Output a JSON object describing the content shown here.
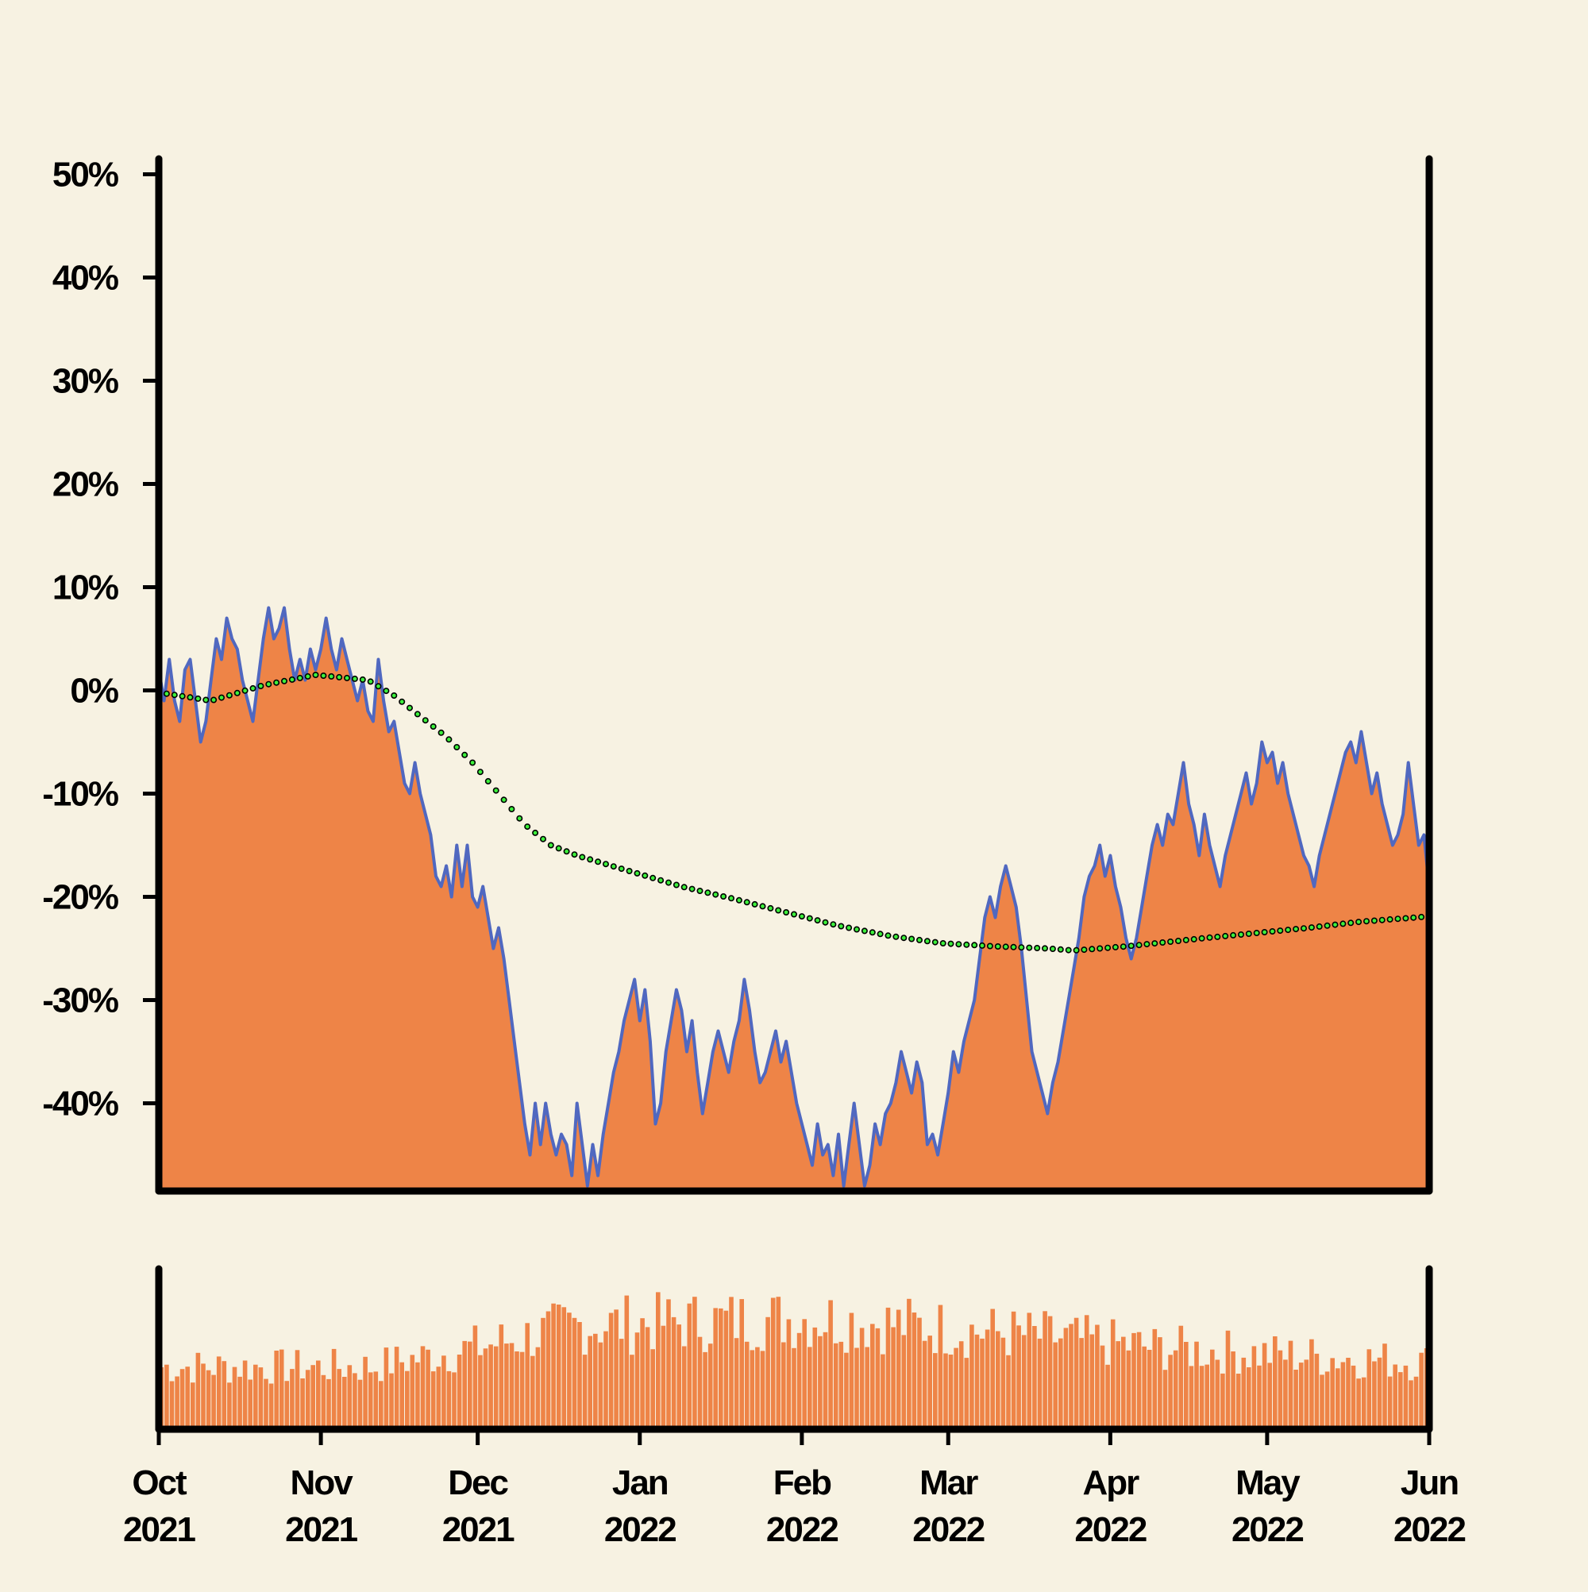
{
  "chart_data": {
    "type": "area",
    "title": "",
    "xlabel": "",
    "ylabel": "",
    "ylim": [
      -48,
      51
    ],
    "yticks": [
      {
        "value": 50,
        "label": "50%"
      },
      {
        "value": 40,
        "label": "40%"
      },
      {
        "value": 30,
        "label": "30%"
      },
      {
        "value": 20,
        "label": "20%"
      },
      {
        "value": 10,
        "label": "10%"
      },
      {
        "value": 0,
        "label": "0%"
      },
      {
        "value": -10,
        "label": "-10%"
      },
      {
        "value": -20,
        "label": "-20%"
      },
      {
        "value": -30,
        "label": "-30%"
      },
      {
        "value": -40,
        "label": "-40%"
      }
    ],
    "xrange_days": [
      0,
      243
    ],
    "xticks": [
      {
        "day": 0,
        "month": "Oct",
        "year": "2021"
      },
      {
        "day": 31,
        "month": "Nov",
        "year": "2021"
      },
      {
        "day": 61,
        "month": "Dec",
        "year": "2021"
      },
      {
        "day": 92,
        "month": "Jan",
        "year": "2022"
      },
      {
        "day": 123,
        "month": "Feb",
        "year": "2022"
      },
      {
        "day": 151,
        "month": "Mar",
        "year": "2022"
      },
      {
        "day": 182,
        "month": "Apr",
        "year": "2022"
      },
      {
        "day": 212,
        "month": "May",
        "year": "2022"
      },
      {
        "day": 243,
        "month": "Jun",
        "year": "2022"
      }
    ],
    "price_anchors": [
      [
        0,
        2
      ],
      [
        1,
        -1
      ],
      [
        2,
        3
      ],
      [
        3,
        -1
      ],
      [
        4,
        -3
      ],
      [
        5,
        2
      ],
      [
        6,
        3
      ],
      [
        7,
        -1
      ],
      [
        8,
        -5
      ],
      [
        9,
        -3
      ],
      [
        10,
        1
      ],
      [
        11,
        5
      ],
      [
        12,
        3
      ],
      [
        13,
        7
      ],
      [
        14,
        5
      ],
      [
        15,
        4
      ],
      [
        16,
        1
      ],
      [
        17,
        -1
      ],
      [
        18,
        -3
      ],
      [
        19,
        1
      ],
      [
        20,
        5
      ],
      [
        21,
        8
      ],
      [
        22,
        5
      ],
      [
        23,
        6
      ],
      [
        24,
        8
      ],
      [
        25,
        4
      ],
      [
        26,
        1
      ],
      [
        27,
        3
      ],
      [
        28,
        1
      ],
      [
        29,
        4
      ],
      [
        30,
        2
      ],
      [
        31,
        4
      ],
      [
        32,
        7
      ],
      [
        33,
        4
      ],
      [
        34,
        2
      ],
      [
        35,
        5
      ],
      [
        36,
        3
      ],
      [
        37,
        1
      ],
      [
        38,
        -1
      ],
      [
        39,
        1
      ],
      [
        40,
        -2
      ],
      [
        41,
        -3
      ],
      [
        42,
        3
      ],
      [
        43,
        -1
      ],
      [
        44,
        -4
      ],
      [
        45,
        -3
      ],
      [
        46,
        -6
      ],
      [
        47,
        -9
      ],
      [
        48,
        -10
      ],
      [
        49,
        -7
      ],
      [
        50,
        -10
      ],
      [
        51,
        -12
      ],
      [
        52,
        -14
      ],
      [
        53,
        -18
      ],
      [
        54,
        -19
      ],
      [
        55,
        -17
      ],
      [
        56,
        -20
      ],
      [
        57,
        -15
      ],
      [
        58,
        -19
      ],
      [
        59,
        -15
      ],
      [
        60,
        -20
      ],
      [
        61,
        -21
      ],
      [
        62,
        -19
      ],
      [
        63,
        -22
      ],
      [
        64,
        -25
      ],
      [
        65,
        -23
      ],
      [
        66,
        -26
      ],
      [
        67,
        -30
      ],
      [
        68,
        -34
      ],
      [
        69,
        -38
      ],
      [
        70,
        -42
      ],
      [
        71,
        -45
      ],
      [
        72,
        -40
      ],
      [
        73,
        -44
      ],
      [
        74,
        -40
      ],
      [
        75,
        -43
      ],
      [
        76,
        -45
      ],
      [
        77,
        -43
      ],
      [
        78,
        -44
      ],
      [
        79,
        -47
      ],
      [
        80,
        -40
      ],
      [
        81,
        -44
      ],
      [
        82,
        -48
      ],
      [
        83,
        -44
      ],
      [
        84,
        -47
      ],
      [
        85,
        -43
      ],
      [
        86,
        -40
      ],
      [
        87,
        -37
      ],
      [
        88,
        -35
      ],
      [
        89,
        -32
      ],
      [
        90,
        -30
      ],
      [
        91,
        -28
      ],
      [
        92,
        -32
      ],
      [
        93,
        -29
      ],
      [
        94,
        -34
      ],
      [
        95,
        -42
      ],
      [
        96,
        -40
      ],
      [
        97,
        -35
      ],
      [
        98,
        -32
      ],
      [
        99,
        -29
      ],
      [
        100,
        -31
      ],
      [
        101,
        -35
      ],
      [
        102,
        -32
      ],
      [
        103,
        -37
      ],
      [
        104,
        -41
      ],
      [
        105,
        -38
      ],
      [
        106,
        -35
      ],
      [
        107,
        -33
      ],
      [
        108,
        -35
      ],
      [
        109,
        -37
      ],
      [
        110,
        -34
      ],
      [
        111,
        -32
      ],
      [
        112,
        -28
      ],
      [
        113,
        -31
      ],
      [
        114,
        -35
      ],
      [
        115,
        -38
      ],
      [
        116,
        -37
      ],
      [
        117,
        -35
      ],
      [
        118,
        -33
      ],
      [
        119,
        -36
      ],
      [
        120,
        -34
      ],
      [
        121,
        -37
      ],
      [
        122,
        -40
      ],
      [
        123,
        -42
      ],
      [
        124,
        -44
      ],
      [
        125,
        -46
      ],
      [
        126,
        -42
      ],
      [
        127,
        -45
      ],
      [
        128,
        -44
      ],
      [
        129,
        -47
      ],
      [
        130,
        -43
      ],
      [
        131,
        -48
      ],
      [
        132,
        -44
      ],
      [
        133,
        -40
      ],
      [
        134,
        -44
      ],
      [
        135,
        -48
      ],
      [
        136,
        -46
      ],
      [
        137,
        -42
      ],
      [
        138,
        -44
      ],
      [
        139,
        -41
      ],
      [
        140,
        -40
      ],
      [
        141,
        -38
      ],
      [
        142,
        -35
      ],
      [
        143,
        -37
      ],
      [
        144,
        -39
      ],
      [
        145,
        -36
      ],
      [
        146,
        -38
      ],
      [
        147,
        -44
      ],
      [
        148,
        -43
      ],
      [
        149,
        -45
      ],
      [
        150,
        -42
      ],
      [
        151,
        -39
      ],
      [
        152,
        -35
      ],
      [
        153,
        -37
      ],
      [
        154,
        -34
      ],
      [
        155,
        -32
      ],
      [
        156,
        -30
      ],
      [
        157,
        -26
      ],
      [
        158,
        -22
      ],
      [
        159,
        -20
      ],
      [
        160,
        -22
      ],
      [
        161,
        -19
      ],
      [
        162,
        -17
      ],
      [
        163,
        -19
      ],
      [
        164,
        -21
      ],
      [
        165,
        -25
      ],
      [
        166,
        -30
      ],
      [
        167,
        -35
      ],
      [
        168,
        -37
      ],
      [
        169,
        -39
      ],
      [
        170,
        -41
      ],
      [
        171,
        -38
      ],
      [
        172,
        -36
      ],
      [
        173,
        -33
      ],
      [
        174,
        -30
      ],
      [
        175,
        -27
      ],
      [
        176,
        -24
      ],
      [
        177,
        -20
      ],
      [
        178,
        -18
      ],
      [
        179,
        -17
      ],
      [
        180,
        -15
      ],
      [
        181,
        -18
      ],
      [
        182,
        -16
      ],
      [
        183,
        -19
      ],
      [
        184,
        -21
      ],
      [
        185,
        -24
      ],
      [
        186,
        -26
      ],
      [
        187,
        -24
      ],
      [
        188,
        -21
      ],
      [
        189,
        -18
      ],
      [
        190,
        -15
      ],
      [
        191,
        -13
      ],
      [
        192,
        -15
      ],
      [
        193,
        -12
      ],
      [
        194,
        -13
      ],
      [
        195,
        -10
      ],
      [
        196,
        -7
      ],
      [
        197,
        -11
      ],
      [
        198,
        -13
      ],
      [
        199,
        -16
      ],
      [
        200,
        -12
      ],
      [
        201,
        -15
      ],
      [
        202,
        -17
      ],
      [
        203,
        -19
      ],
      [
        204,
        -16
      ],
      [
        205,
        -14
      ],
      [
        206,
        -12
      ],
      [
        207,
        -10
      ],
      [
        208,
        -8
      ],
      [
        209,
        -11
      ],
      [
        210,
        -9
      ],
      [
        211,
        -5
      ],
      [
        212,
        -7
      ],
      [
        213,
        -6
      ],
      [
        214,
        -9
      ],
      [
        215,
        -7
      ],
      [
        216,
        -10
      ],
      [
        217,
        -12
      ],
      [
        218,
        -14
      ],
      [
        219,
        -16
      ],
      [
        220,
        -17
      ],
      [
        221,
        -19
      ],
      [
        222,
        -16
      ],
      [
        223,
        -14
      ],
      [
        224,
        -12
      ],
      [
        225,
        -10
      ],
      [
        226,
        -8
      ],
      [
        227,
        -6
      ],
      [
        228,
        -5
      ],
      [
        229,
        -7
      ],
      [
        230,
        -4
      ],
      [
        231,
        -7
      ],
      [
        232,
        -10
      ],
      [
        233,
        -8
      ],
      [
        234,
        -11
      ],
      [
        235,
        -13
      ],
      [
        236,
        -15
      ],
      [
        237,
        -14
      ],
      [
        238,
        -12
      ],
      [
        239,
        -7
      ],
      [
        240,
        -11
      ],
      [
        241,
        -15
      ],
      [
        242,
        -14
      ],
      [
        243,
        -19
      ]
    ],
    "trend_anchors": [
      [
        0,
        -0.2
      ],
      [
        10,
        -1.0
      ],
      [
        20,
        0.5
      ],
      [
        30,
        1.5
      ],
      [
        40,
        1.0
      ],
      [
        45,
        -0.5
      ],
      [
        50,
        -2.5
      ],
      [
        55,
        -4.5
      ],
      [
        60,
        -7
      ],
      [
        65,
        -10
      ],
      [
        70,
        -13
      ],
      [
        75,
        -15
      ],
      [
        80,
        -16
      ],
      [
        90,
        -17.5
      ],
      [
        100,
        -19
      ],
      [
        110,
        -20.2
      ],
      [
        120,
        -21.5
      ],
      [
        130,
        -22.8
      ],
      [
        140,
        -23.8
      ],
      [
        150,
        -24.5
      ],
      [
        160,
        -24.8
      ],
      [
        170,
        -25
      ],
      [
        175,
        -25.2
      ],
      [
        185,
        -24.8
      ],
      [
        200,
        -24
      ],
      [
        210,
        -23.5
      ],
      [
        220,
        -23
      ],
      [
        230,
        -22.4
      ],
      [
        243,
        -21.9
      ]
    ],
    "volume_note": "Daily volume bars (relative), generated from seed; no axis values shown"
  },
  "colors": {
    "background": "#f7f2e2",
    "area_fill": "#ee8447",
    "price_line": "#5068c0",
    "trend_dots": "#3cf03c",
    "axis": "#000000"
  }
}
